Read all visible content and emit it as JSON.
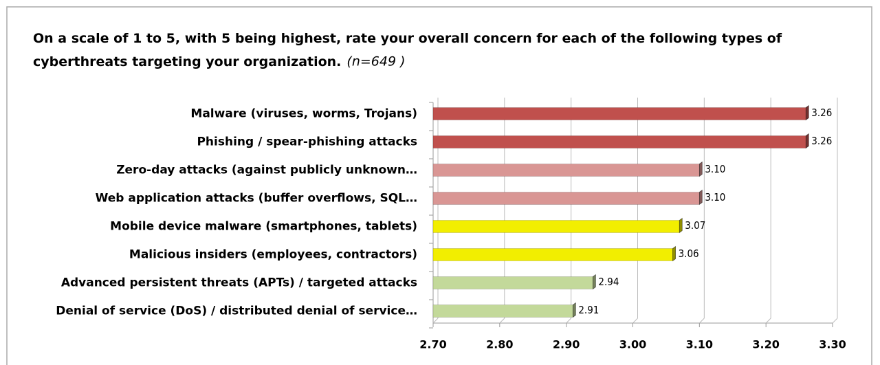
{
  "chart_data": {
    "type": "bar",
    "title": "On a scale of 1 to 5, with 5 being highest, rate your overall concern for each of the following types of cyberthreats targeting your organization.",
    "note": "(n=649 )",
    "categories": [
      "Malware (viruses, worms, Trojans)",
      "Phishing / spear-phishing attacks",
      "Zero-day attacks (against publicly unknown…",
      "Web application attacks (buffer overflows, SQL…",
      "Mobile device malware (smartphones, tablets)",
      "Malicious insiders (employees, contractors)",
      "Advanced persistent threats (APTs) / targeted attacks",
      "Denial of service (DoS) / distributed denial of service…"
    ],
    "values": [
      3.26,
      3.26,
      3.1,
      3.1,
      3.07,
      3.06,
      2.94,
      2.91
    ],
    "value_labels": [
      "3.26",
      "3.26",
      "3.10",
      "3.10",
      "3.07",
      "3.06",
      "2.94",
      "2.91"
    ],
    "colors": [
      "#c0504d",
      "#c0504d",
      "#d99694",
      "#d99694",
      "#f2ee00",
      "#f2ee00",
      "#c3d99a",
      "#c3d99a"
    ],
    "xlim": [
      2.7,
      3.3
    ],
    "xticks": [
      {
        "value": 2.7,
        "label": "2.70"
      },
      {
        "value": 2.8,
        "label": "2.80"
      },
      {
        "value": 2.9,
        "label": "2.90"
      },
      {
        "value": 3.0,
        "label": "3.00"
      },
      {
        "value": 3.1,
        "label": "3.10"
      },
      {
        "value": 3.2,
        "label": "3.20"
      },
      {
        "value": 3.3,
        "label": "3.30"
      }
    ],
    "grid": true
  }
}
